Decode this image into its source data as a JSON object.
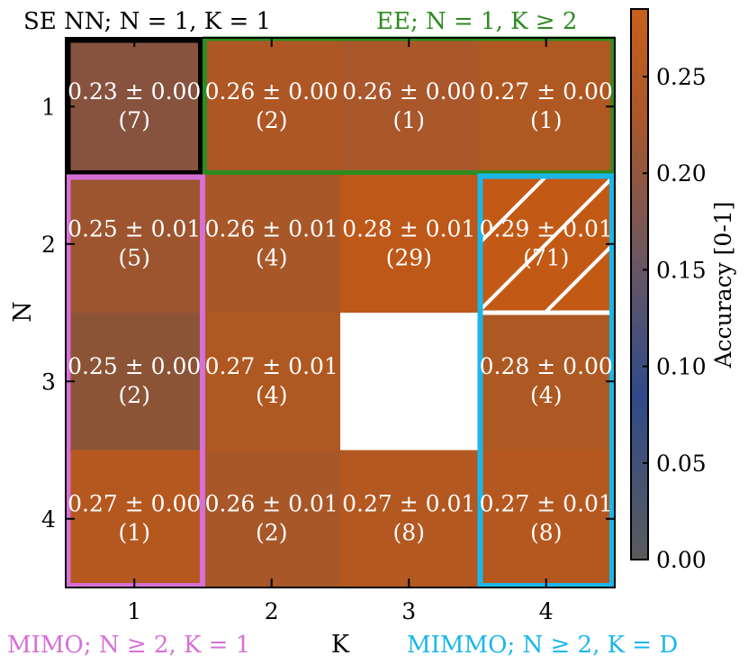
{
  "chart_data": {
    "type": "heatmap",
    "xlabel": "K",
    "ylabel": "N",
    "x_categories": [
      "1",
      "2",
      "3",
      "4"
    ],
    "y_categories": [
      "1",
      "2",
      "3",
      "4"
    ],
    "cells": [
      {
        "n": 1,
        "k": 1,
        "mean": 0.23,
        "err": 0.0,
        "label": "0.23 ± 0.00",
        "count": "(7)",
        "color": "#87533f"
      },
      {
        "n": 1,
        "k": 2,
        "mean": 0.26,
        "err": 0.0,
        "label": "0.26 ± 0.00",
        "count": "(2)",
        "color": "#ae5725"
      },
      {
        "n": 1,
        "k": 3,
        "mean": 0.26,
        "err": 0.0,
        "label": "0.26 ± 0.00",
        "count": "(1)",
        "color": "#a9572b"
      },
      {
        "n": 1,
        "k": 4,
        "mean": 0.27,
        "err": 0.0,
        "label": "0.27 ± 0.00",
        "count": "(1)",
        "color": "#b05821"
      },
      {
        "n": 2,
        "k": 1,
        "mean": 0.25,
        "err": 0.01,
        "label": "0.25 ± 0.01",
        "count": "(5)",
        "color": "#9d552f"
      },
      {
        "n": 2,
        "k": 2,
        "mean": 0.26,
        "err": 0.01,
        "label": "0.26 ± 0.01",
        "count": "(4)",
        "color": "#a85729"
      },
      {
        "n": 2,
        "k": 3,
        "mean": 0.28,
        "err": 0.01,
        "label": "0.28 ± 0.01",
        "count": "(29)",
        "color": "#bd5819"
      },
      {
        "n": 2,
        "k": 4,
        "mean": 0.29,
        "err": 0.01,
        "label": "0.29 ± 0.01",
        "count": "(71)",
        "color": "#c25a16",
        "hatched": true
      },
      {
        "n": 3,
        "k": 1,
        "mean": 0.25,
        "err": 0.0,
        "label": "0.25 ± 0.00",
        "count": "(2)",
        "color": "#8c5437"
      },
      {
        "n": 3,
        "k": 2,
        "mean": 0.27,
        "err": 0.01,
        "label": "0.27 ± 0.01",
        "count": "(4)",
        "color": "#b05821"
      },
      {
        "n": 3,
        "k": 4,
        "mean": 0.28,
        "err": 0.0,
        "label": "0.28 ± 0.00",
        "count": "(4)",
        "color": "#ae5923"
      },
      {
        "n": 4,
        "k": 1,
        "mean": 0.27,
        "err": 0.0,
        "label": "0.27 ± 0.00",
        "count": "(1)",
        "color": "#b55820"
      },
      {
        "n": 4,
        "k": 2,
        "mean": 0.26,
        "err": 0.01,
        "label": "0.26 ± 0.01",
        "count": "(2)",
        "color": "#a85729"
      },
      {
        "n": 4,
        "k": 3,
        "mean": 0.27,
        "err": 0.01,
        "label": "0.27 ± 0.01",
        "count": "(8)",
        "color": "#b35820"
      },
      {
        "n": 4,
        "k": 4,
        "mean": 0.27,
        "err": 0.01,
        "label": "0.27 ± 0.01",
        "count": "(8)",
        "color": "#b55820"
      }
    ],
    "missing_cells": [
      {
        "n": 3,
        "k": 3
      }
    ],
    "colorbar": {
      "label": "Accuracy [0-1]",
      "range": [
        0.0,
        0.285
      ],
      "ticks": [
        "0.00",
        "0.05",
        "0.10",
        "0.15",
        "0.20",
        "0.25"
      ],
      "tick_values": [
        0.0,
        0.05,
        0.1,
        0.15,
        0.2,
        0.25
      ],
      "colors": [
        "#5b5b5b",
        "#2f4a8a",
        "#6d5760",
        "#a9572b",
        "#c8601a"
      ]
    },
    "regions": [
      {
        "id": "se-nn",
        "label": "SE NN; N = 1, K = 1",
        "color": "#000000",
        "cells": "N=1, K=1"
      },
      {
        "id": "ee",
        "label": "EE; N = 1, K ≥ 2",
        "color": "#2e8b22",
        "cells": "N=1, K=2..4"
      },
      {
        "id": "mimo",
        "label": "MIMO; N ≥ 2, K = 1",
        "color": "#d670d6",
        "cells": "N=2..4, K=1"
      },
      {
        "id": "mimmo",
        "label": "MIMMO; N ≥ 2, K = D",
        "color": "#1ab7ea",
        "cells": "N=2..4, K=4"
      }
    ]
  }
}
